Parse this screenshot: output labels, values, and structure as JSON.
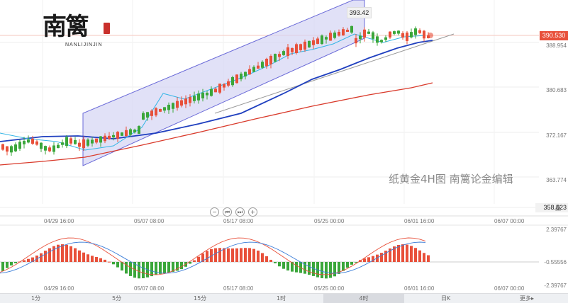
{
  "watermark": "纸黄金4H图   南篱论金编辑",
  "logo": {
    "main": "南篱",
    "sub": "NANLIJINJIN"
  },
  "chart_data": {
    "type": "candlestick",
    "title": "",
    "price": {
      "current": "390.530",
      "peak": "393.42",
      "low_marker": "358.523",
      "y_ticks": [
        "388.954",
        "380.683",
        "372.167",
        "363.774"
      ]
    },
    "x_ticks": [
      "04/29 16:00",
      "05/07 08:00",
      "05/17 08:00",
      "05/25 00:00",
      "06/01 16:00",
      "06/07 00:00"
    ],
    "macd": {
      "y_ticks": [
        "2.39767",
        "-0.55556",
        "-2.39767"
      ]
    },
    "colors": {
      "up": "#e8503a",
      "down": "#3aa63a",
      "ma_fast": "#33b5e5",
      "ma_mid": "#1f3fbf",
      "ma_slow": "#d93a2b",
      "channel": "#6a6ad8"
    }
  },
  "controls": {
    "minus": "−",
    "back": "⏮",
    "play": "⏭",
    "plus": "+"
  },
  "timeframes": [
    "1分",
    "5分",
    "15分",
    "1时",
    "4时",
    "日K"
  ],
  "active_timeframe": "4时",
  "more": "更多▸",
  "badge": "桑"
}
